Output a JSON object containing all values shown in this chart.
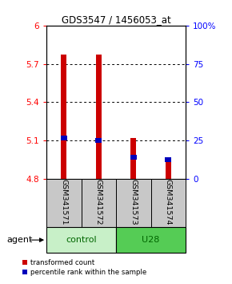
{
  "title": "GDS3547 / 1456053_at",
  "samples": [
    "GSM341571",
    "GSM341572",
    "GSM341573",
    "GSM341574"
  ],
  "bar_bottom": 4.8,
  "red_values": [
    5.77,
    5.77,
    5.12,
    4.93
  ],
  "blue_values": [
    5.12,
    5.1,
    4.97,
    4.95
  ],
  "ylim_left": [
    4.8,
    6.0
  ],
  "ylim_right": [
    0,
    100
  ],
  "yticks_left": [
    4.8,
    5.1,
    5.4,
    5.7,
    6.0
  ],
  "yticks_right": [
    0,
    25,
    50,
    75,
    100
  ],
  "ytick_labels_left": [
    "4.8",
    "5.1",
    "5.4",
    "5.7",
    "6"
  ],
  "ytick_labels_right": [
    "0",
    "25",
    "50",
    "75",
    "100%"
  ],
  "hlines": [
    5.1,
    5.4,
    5.7
  ],
  "bar_width": 0.15,
  "blue_bar_height": 0.035,
  "red_color": "#CC0000",
  "blue_color": "#0000BB",
  "group_bg_color_control": "#C8F0C8",
  "group_bg_color_U28": "#55CC55",
  "sample_bg_color": "#C8C8C8",
  "legend_red": "transformed count",
  "legend_blue": "percentile rank within the sample",
  "agent_label": "agent"
}
